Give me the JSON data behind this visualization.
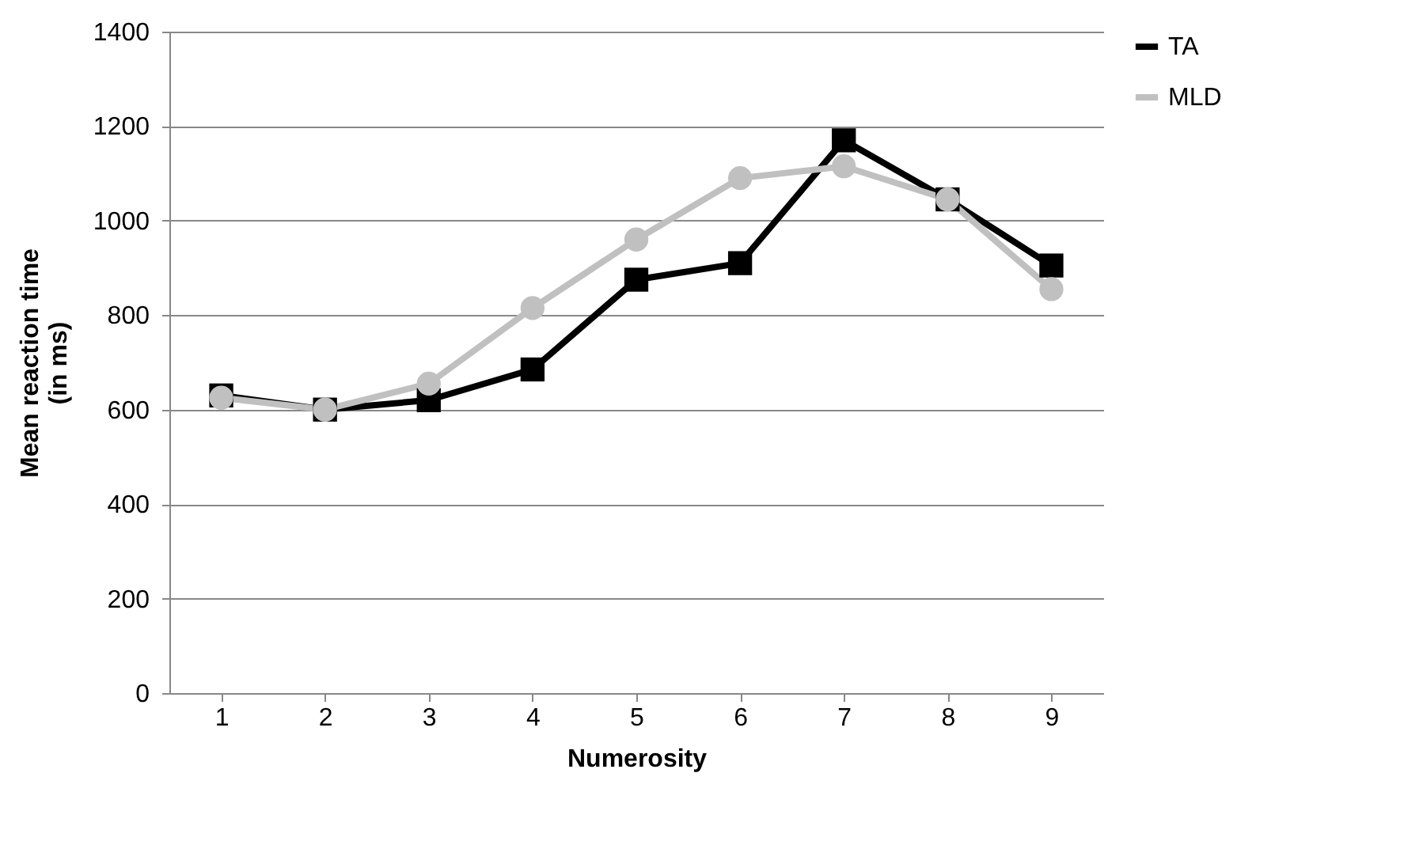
{
  "chart_data": {
    "type": "line",
    "xlabel": "Numerosity",
    "ylabel": "Mean reaction time (in ms)",
    "categories": [
      "1",
      "2",
      "3",
      "4",
      "5",
      "6",
      "7",
      "8",
      "9"
    ],
    "series": [
      {
        "name": "TA",
        "color": "#000000",
        "marker": "square",
        "values": [
          630,
          600,
          620,
          685,
          875,
          910,
          1170,
          1045,
          905
        ]
      },
      {
        "name": "MLD",
        "color": "#c0c0c0",
        "marker": "circle",
        "values": [
          625,
          600,
          655,
          815,
          960,
          1090,
          1115,
          1045,
          855
        ]
      }
    ],
    "ylim": [
      0,
      1400
    ],
    "yticks": [
      0,
      200,
      400,
      600,
      800,
      1000,
      1200,
      1400
    ],
    "grid": "y",
    "legend": "right"
  }
}
